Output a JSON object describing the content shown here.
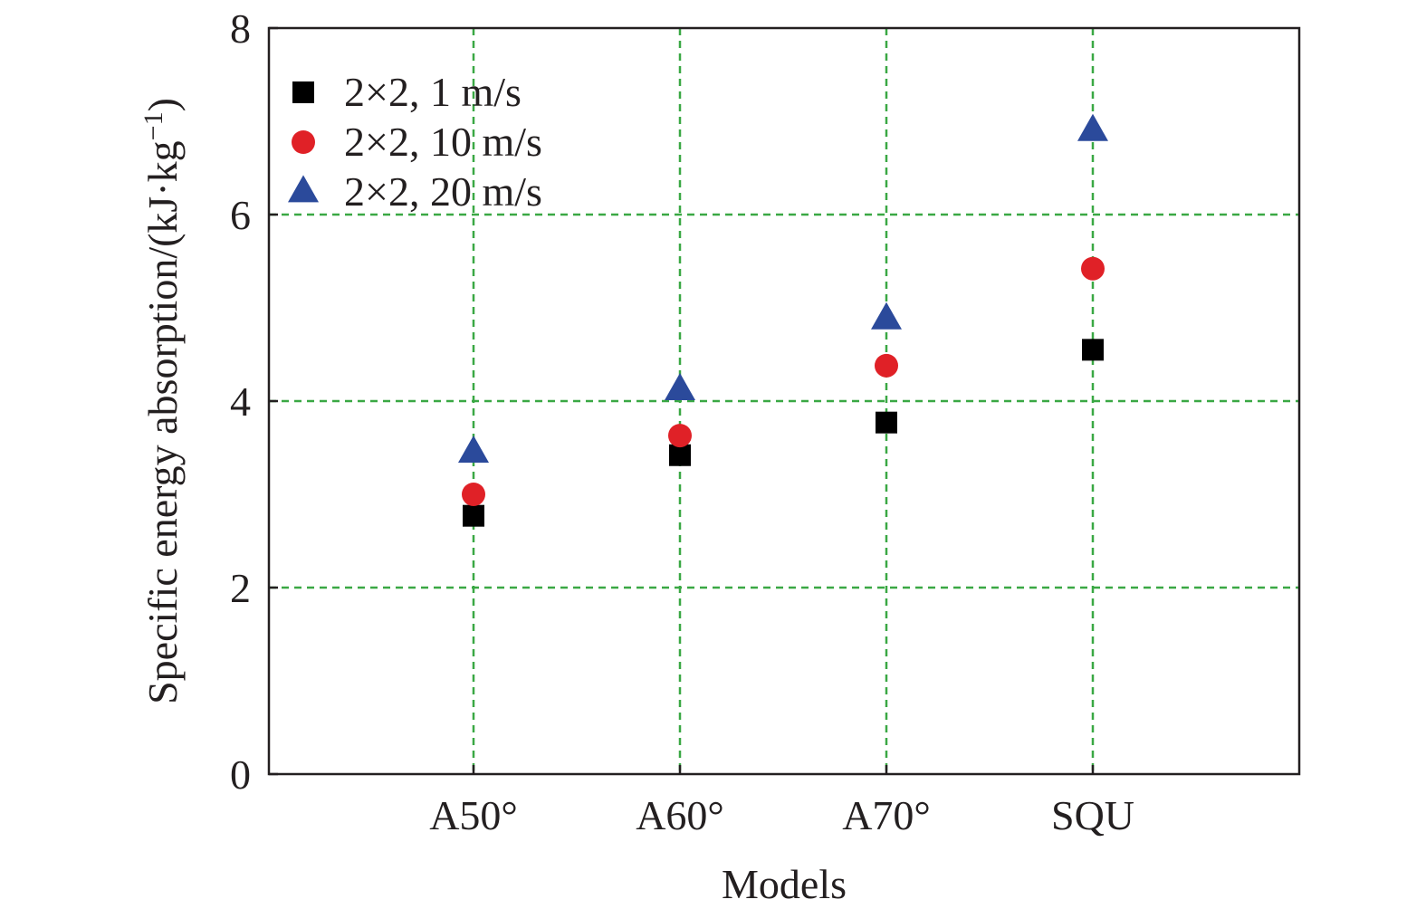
{
  "chart_data": {
    "type": "scatter",
    "categories": [
      "A50°",
      "A60°",
      "A70°",
      "SQU"
    ],
    "series": [
      {
        "name": "2×2, 1 m/s",
        "marker": "square",
        "color": "#000000",
        "values": [
          2.77,
          3.42,
          3.77,
          4.55
        ]
      },
      {
        "name": "2×2, 10 m/s",
        "marker": "circle",
        "color": "#e02127",
        "values": [
          3.0,
          3.63,
          4.38,
          5.42
        ]
      },
      {
        "name": "2×2, 20 m/s",
        "marker": "triangle",
        "color": "#2b4a9b",
        "values": [
          3.45,
          4.12,
          4.88,
          6.9
        ]
      }
    ],
    "xlabel": "Models",
    "ylabel": "Specific energy absorption/(kJ·kg",
    "ylabel_sup": "−1",
    "ylabel_close": ")",
    "ylim": [
      0,
      8
    ],
    "yticks": [
      0,
      2,
      4,
      6,
      8
    ],
    "grid": true,
    "grid_color": "#3aa844",
    "legend_position": "top-left"
  }
}
